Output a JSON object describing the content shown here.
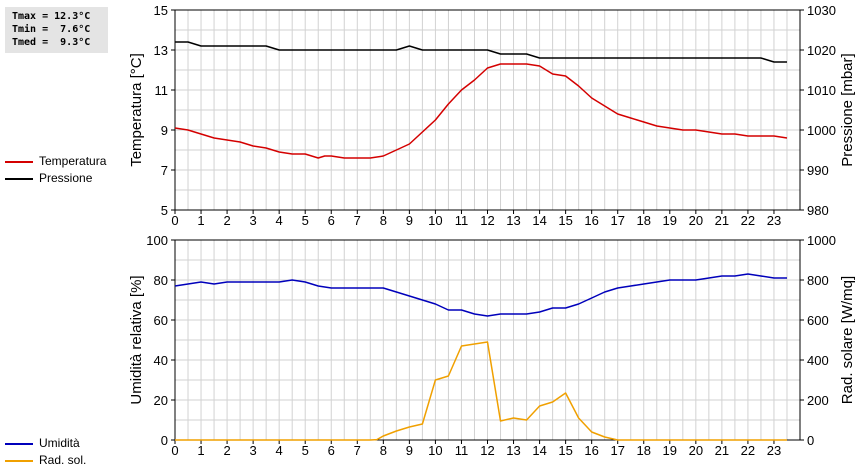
{
  "stats": {
    "tmax": "Tmax = 12.3°C",
    "tmin": "Tmin =  7.6°C",
    "tmed": "Tmed =  9.3°C"
  },
  "legend_top": [
    {
      "label": "Temperatura",
      "color": "#d40000"
    },
    {
      "label": "Pressione",
      "color": "#000000"
    }
  ],
  "legend_bottom": [
    {
      "label": "Umidità",
      "color": "#0000bb"
    },
    {
      "label": "Rad. sol.",
      "color": "#f0a000"
    }
  ],
  "chart_data": [
    {
      "type": "line",
      "x_ticks": [
        "0",
        "1",
        "2",
        "3",
        "4",
        "5",
        "6",
        "7",
        "8",
        "9",
        "10",
        "11",
        "12",
        "13",
        "14",
        "15",
        "16",
        "17",
        "18",
        "19",
        "20",
        "21",
        "22",
        "23"
      ],
      "xlim": [
        0,
        24
      ],
      "ylabel_left": "Temperatura [°C]",
      "ylim_left": [
        5,
        15
      ],
      "yticks_left": [
        "5",
        "7",
        "9",
        "11",
        "13",
        "15"
      ],
      "ylabel_right": "Pressione [mbar]",
      "ylim_right": [
        980,
        1030
      ],
      "yticks_right": [
        "980",
        "990",
        "1000",
        "1010",
        "1020",
        "1030"
      ],
      "grid": true,
      "series": [
        {
          "name": "Temperatura",
          "axis": "left",
          "color": "#d40000",
          "x": [
            0,
            0.5,
            1,
            1.5,
            2,
            2.5,
            3,
            3.5,
            4,
            4.5,
            5,
            5.5,
            5.75,
            6,
            6.5,
            7,
            7.5,
            8,
            8.5,
            9,
            9.5,
            10,
            10.5,
            11,
            11.5,
            12,
            12.5,
            13,
            13.5,
            14,
            14.5,
            15,
            15.5,
            16,
            16.5,
            17,
            17.5,
            18,
            18.5,
            19,
            19.5,
            20,
            20.5,
            21,
            21.5,
            22,
            22.5,
            23,
            23.5
          ],
          "values": [
            9.1,
            9.0,
            8.8,
            8.6,
            8.5,
            8.4,
            8.2,
            8.1,
            7.9,
            7.8,
            7.8,
            7.6,
            7.7,
            7.7,
            7.6,
            7.6,
            7.6,
            7.7,
            8.0,
            8.3,
            8.9,
            9.5,
            10.3,
            11.0,
            11.5,
            12.1,
            12.3,
            12.3,
            12.3,
            12.2,
            11.8,
            11.7,
            11.2,
            10.6,
            10.2,
            9.8,
            9.6,
            9.4,
            9.2,
            9.1,
            9.0,
            9.0,
            8.9,
            8.8,
            8.8,
            8.7,
            8.7,
            8.7,
            8.6
          ]
        },
        {
          "name": "Pressione",
          "axis": "right",
          "color": "#000000",
          "x": [
            0,
            0.5,
            1,
            1.5,
            2,
            2.5,
            3,
            3.5,
            4,
            4.5,
            5,
            5.5,
            6,
            6.5,
            7,
            7.5,
            8,
            8.5,
            9,
            9.5,
            10,
            10.5,
            11,
            11.5,
            12,
            12.5,
            13,
            13.5,
            14,
            14.5,
            15,
            15.5,
            16,
            16.5,
            17,
            17.5,
            18,
            18.5,
            19,
            19.5,
            20,
            20.5,
            21,
            21.5,
            22,
            22.5,
            23,
            23.5
          ],
          "values": [
            1022,
            1022,
            1021,
            1021,
            1021,
            1021,
            1021,
            1021,
            1020,
            1020,
            1020,
            1020,
            1020,
            1020,
            1020,
            1020,
            1020,
            1020,
            1021,
            1020,
            1020,
            1020,
            1020,
            1020,
            1020,
            1019,
            1019,
            1019,
            1018,
            1018,
            1018,
            1018,
            1018,
            1018,
            1018,
            1018,
            1018,
            1018,
            1018,
            1018,
            1018,
            1018,
            1018,
            1018,
            1018,
            1018,
            1017,
            1017
          ]
        }
      ]
    },
    {
      "type": "line",
      "x_ticks": [
        "0",
        "1",
        "2",
        "3",
        "4",
        "5",
        "6",
        "7",
        "8",
        "9",
        "10",
        "11",
        "12",
        "13",
        "14",
        "15",
        "16",
        "17",
        "18",
        "19",
        "20",
        "21",
        "22",
        "23"
      ],
      "xlim": [
        0,
        24
      ],
      "ylabel_left": "Umidità relativa [%]",
      "ylim_left": [
        0,
        100
      ],
      "yticks_left": [
        "0",
        "20",
        "40",
        "60",
        "80",
        "100"
      ],
      "ylabel_right": "Rad. solare [W/mq]",
      "ylim_right": [
        0,
        1000
      ],
      "yticks_right": [
        "0",
        "200",
        "400",
        "600",
        "800",
        "1000"
      ],
      "grid": true,
      "series": [
        {
          "name": "Umidità",
          "axis": "left",
          "color": "#0000bb",
          "x": [
            0,
            0.5,
            1,
            1.5,
            2,
            2.5,
            3,
            3.5,
            4,
            4.5,
            5,
            5.5,
            6,
            6.5,
            7,
            7.5,
            8,
            8.5,
            9,
            9.5,
            10,
            10.5,
            11,
            11.5,
            12,
            12.5,
            13,
            13.5,
            14,
            14.5,
            15,
            15.5,
            16,
            16.5,
            17,
            17.5,
            18,
            18.5,
            19,
            19.5,
            20,
            20.5,
            21,
            21.5,
            22,
            22.5,
            23,
            23.5
          ],
          "values": [
            77,
            78,
            79,
            78,
            79,
            79,
            79,
            79,
            79,
            80,
            79,
            77,
            76,
            76,
            76,
            76,
            76,
            74,
            72,
            70,
            68,
            65,
            65,
            63,
            62,
            63,
            63,
            63,
            64,
            66,
            66,
            68,
            71,
            74,
            76,
            77,
            78,
            79,
            80,
            80,
            80,
            81,
            82,
            82,
            83,
            82,
            81,
            81
          ]
        },
        {
          "name": "Rad. sol.",
          "axis": "right",
          "color": "#f0a000",
          "x": [
            0,
            0.5,
            1,
            1.5,
            2,
            2.5,
            3,
            3.5,
            4,
            4.5,
            5,
            5.5,
            6,
            6.5,
            7,
            7.5,
            7.75,
            8,
            8.5,
            9,
            9.5,
            10,
            10.5,
            11,
            11.5,
            12,
            12.5,
            13,
            13.5,
            14,
            14.5,
            15,
            15.5,
            16,
            16.5,
            17,
            17.5,
            18,
            18.5,
            19,
            19.5,
            20,
            20.5,
            21,
            21.5,
            22,
            22.5,
            23,
            23.5
          ],
          "values": [
            0,
            0,
            0,
            0,
            0,
            0,
            0,
            0,
            0,
            0,
            0,
            0,
            0,
            0,
            0,
            0,
            2,
            20,
            45,
            65,
            80,
            300,
            320,
            470,
            480,
            490,
            95,
            110,
            100,
            170,
            190,
            235,
            110,
            40,
            15,
            0,
            0,
            0,
            0,
            0,
            0,
            0,
            0,
            0,
            0,
            0,
            0,
            0,
            0
          ]
        }
      ]
    }
  ]
}
